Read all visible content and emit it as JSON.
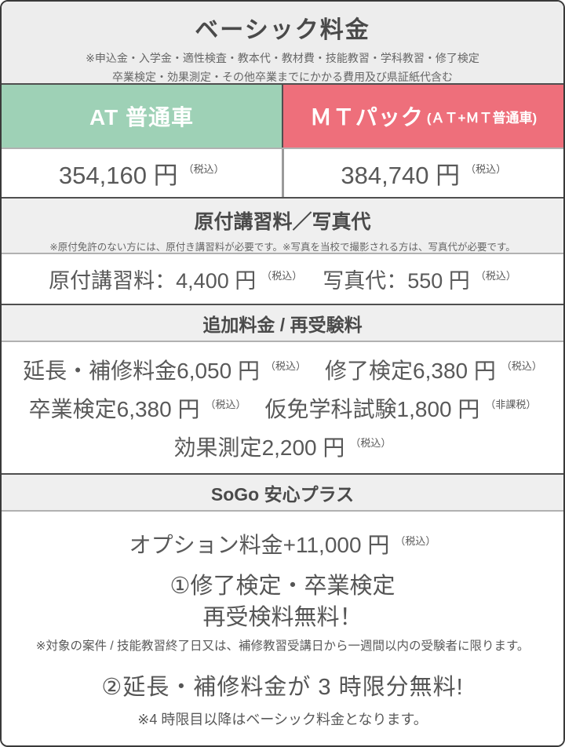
{
  "colors": {
    "at_green": "#9ed1b6",
    "mt_red": "#ee6f7b",
    "section_gray": "#efefef",
    "header_gray": "#ededed",
    "text_dark": "#4d4d4d",
    "divider_dark": "#4f4f4f",
    "divider_light": "#b1b1b1"
  },
  "header": {
    "title": "ベーシック料金",
    "note1": "※申込金・入学金・適性検査・教本代・教材費・技能教習・学科教習・修了検定",
    "note2": "卒業検定・効果測定・その他卒業までにかかる費用及び県証紙代含む"
  },
  "plans": {
    "at": {
      "label": "AT 普通車",
      "price": "354,160 円",
      "tax": "（税込）"
    },
    "mt": {
      "label": "ＭＴパック",
      "label_sub": "(ＡＴ+ＭＴ普通車)",
      "price": "384,740 円",
      "tax": "（税込）"
    }
  },
  "gentsuki": {
    "title": "原付講習料／写真代",
    "note": "※原付免許のない方には、原付き講習料が必要です。※写真を当校で撮影される方は、写真代が必要です。",
    "fee1_label": "原付講習料：",
    "fee1_price": "4,400 円",
    "fee1_tax": "（税込）",
    "fee2_label": "写真代：",
    "fee2_price": "550 円",
    "fee2_tax": "（税込）"
  },
  "additional": {
    "title": "追加料金 / 再受験料",
    "items": [
      {
        "label": "延長・補修料金 ",
        "price": "6,050 円",
        "tax": "（税込）"
      },
      {
        "label": "修了検定 ",
        "price": "6,380 円",
        "tax": "（税込）"
      },
      {
        "label": "卒業検定 ",
        "price": "6,380 円",
        "tax": "（税込）"
      },
      {
        "label": "仮免学科試験 ",
        "price": "1,800 円",
        "tax": "（非課税）"
      },
      {
        "label": "効果測定 ",
        "price": "2,200 円",
        "tax": "（税込）"
      }
    ]
  },
  "anshin": {
    "title": "SoGo 安心プラス",
    "option_label": "オプション料金 ",
    "option_price": "+11,000 円",
    "option_tax": "（税込）",
    "benefit1_line1": "①修了検定・卒業検定",
    "benefit1_line2": "再受検料無料！",
    "benefit1_note": "※対象の案件 / 技能教習終了日又は、補修教習受講日から一週間以内の受験者に限ります。",
    "benefit2": "②延長・補修料金が 3 時限分無料!",
    "benefit2_note": "※4 時限目以降はベーシック料金となります。"
  }
}
